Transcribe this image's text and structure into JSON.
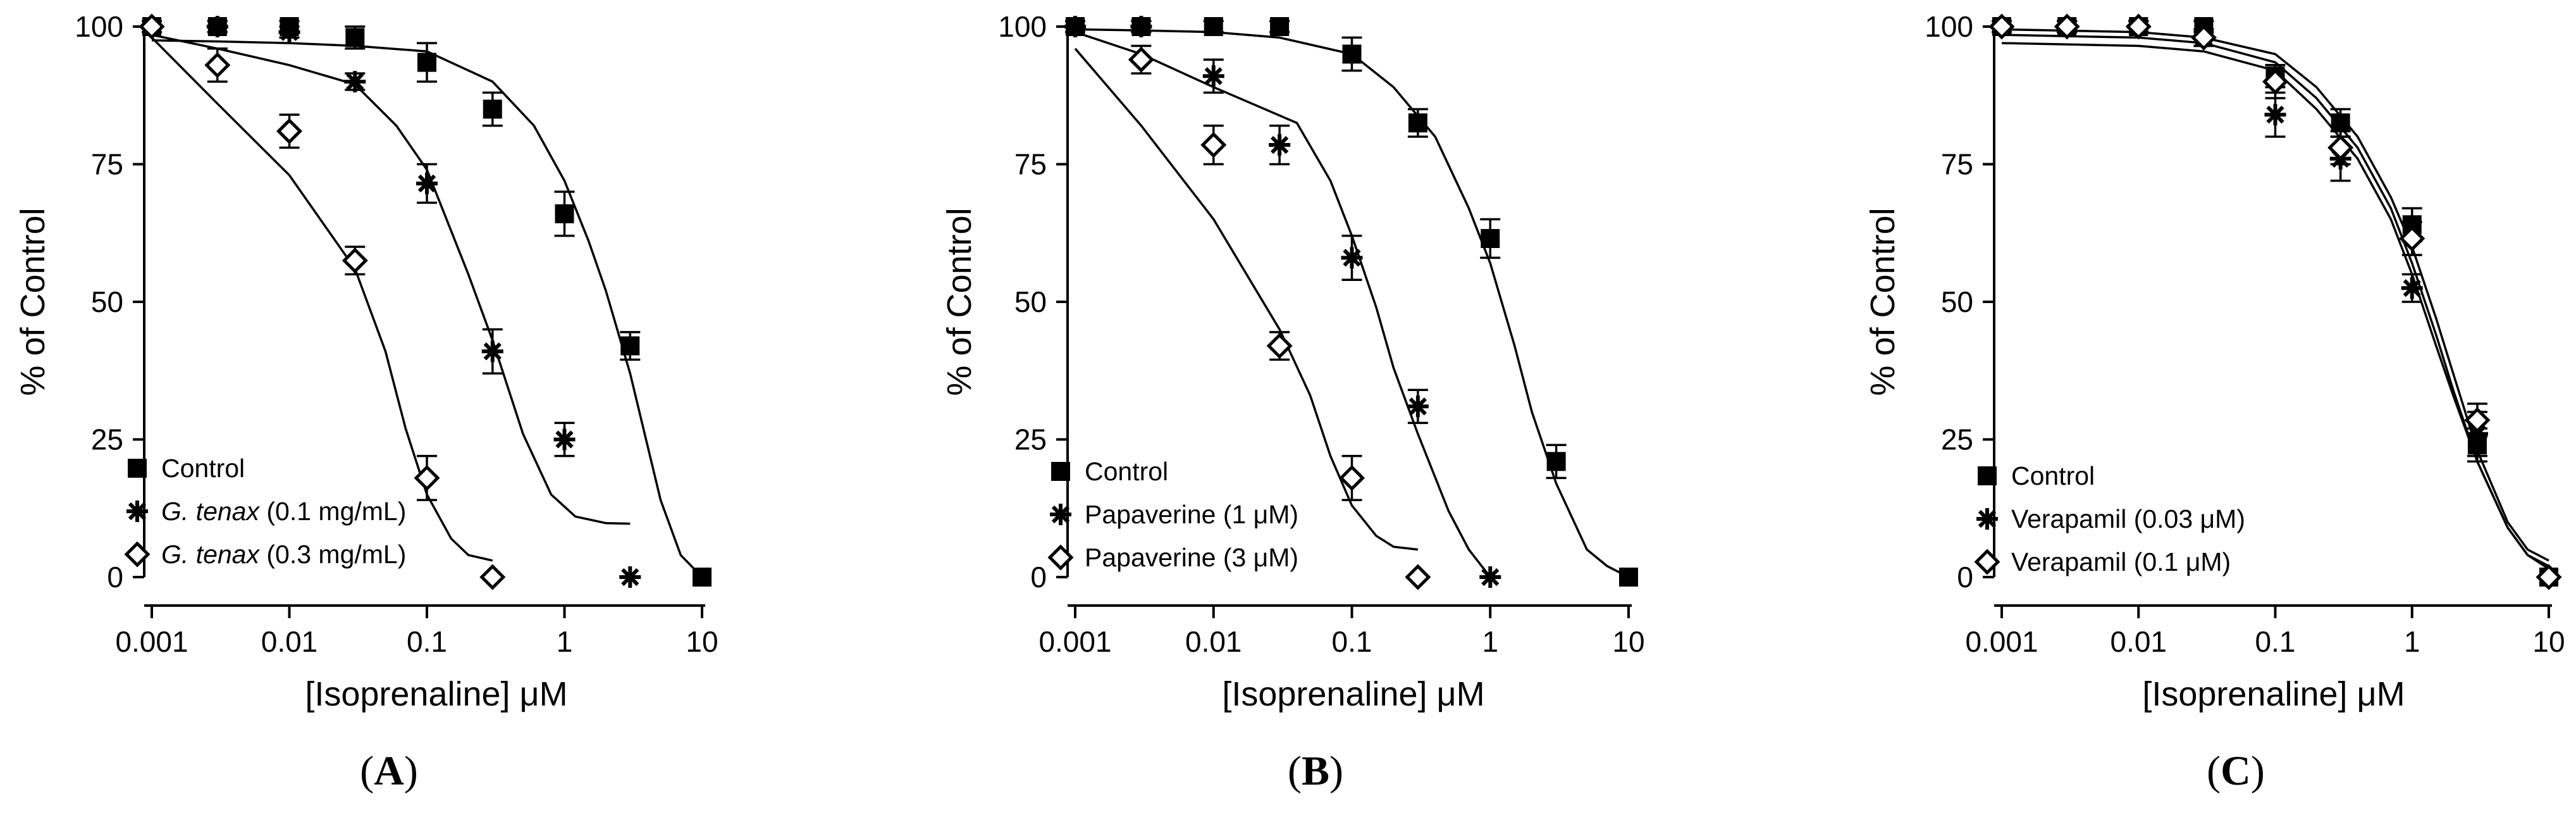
{
  "chart_data": [
    {
      "type": "scatter",
      "panel_label": "(A)",
      "xscale": "log",
      "xlabel": "[Isoprenaline] μM",
      "ylabel": "% of Control",
      "xlim": [
        0.001,
        10
      ],
      "ylim": [
        0,
        100
      ],
      "xticks": [
        "0.001",
        "0.01",
        "0.1",
        "1",
        "10"
      ],
      "yticks": [
        "0",
        "25",
        "50",
        "75",
        "100"
      ],
      "legend_position": "bottom-left",
      "series": [
        {
          "name": "Control",
          "legend_parts": [
            {
              "text": "Control",
              "italic": false
            }
          ],
          "marker": "square",
          "points": [
            {
              "x": 0.001,
              "y": 100,
              "err": 1
            },
            {
              "x": 0.003,
              "y": 100,
              "err": 1
            },
            {
              "x": 0.01,
              "y": 100,
              "err": 1
            },
            {
              "x": 0.03,
              "y": 98,
              "err": 2
            },
            {
              "x": 0.1,
              "y": 93.5,
              "err": 3.5
            },
            {
              "x": 0.3,
              "y": 85,
              "err": 3
            },
            {
              "x": 1,
              "y": 66,
              "err": 4
            },
            {
              "x": 3,
              "y": 42,
              "err": 2.5
            },
            {
              "x": 10,
              "y": 0,
              "err": 0
            }
          ],
          "curve": [
            [
              0.001,
              97.5
            ],
            [
              0.003,
              97.3
            ],
            [
              0.01,
              97.0
            ],
            [
              0.03,
              96.5
            ],
            [
              0.1,
              95.5
            ],
            [
              0.3,
              90
            ],
            [
              0.6,
              82
            ],
            [
              1,
              72
            ],
            [
              1.5,
              61
            ],
            [
              2,
              52
            ],
            [
              3,
              37
            ],
            [
              5,
              14
            ],
            [
              7,
              4
            ],
            [
              10,
              0
            ]
          ]
        },
        {
          "name": "G. tenax (0.1 mg/mL)",
          "legend_parts": [
            {
              "text": "G. tenax",
              "italic": true
            },
            {
              "text": " (0.1 mg/mL)",
              "italic": false
            }
          ],
          "marker": "asterisk",
          "points": [
            {
              "x": 0.001,
              "y": 100,
              "err": 1
            },
            {
              "x": 0.003,
              "y": 100,
              "err": 1
            },
            {
              "x": 0.01,
              "y": 99,
              "err": 1
            },
            {
              "x": 0.03,
              "y": 90,
              "err": 1.5
            },
            {
              "x": 0.1,
              "y": 71.5,
              "err": 3.5
            },
            {
              "x": 0.3,
              "y": 41,
              "err": 4
            },
            {
              "x": 1,
              "y": 25,
              "err": 3
            },
            {
              "x": 3,
              "y": 0,
              "err": 0
            }
          ],
          "curve": [
            [
              0.001,
              98.5
            ],
            [
              0.003,
              96
            ],
            [
              0.01,
              93
            ],
            [
              0.03,
              89.5
            ],
            [
              0.06,
              82
            ],
            [
              0.1,
              74
            ],
            [
              0.2,
              55
            ],
            [
              0.3,
              43
            ],
            [
              0.5,
              26
            ],
            [
              0.8,
              15
            ],
            [
              1.2,
              11
            ],
            [
              2,
              9.8
            ],
            [
              3,
              9.7
            ]
          ]
        },
        {
          "name": "G. tenax (0.3 mg/mL)",
          "legend_parts": [
            {
              "text": "G. tenax",
              "italic": true
            },
            {
              "text": " (0.3 mg/mL)",
              "italic": false
            }
          ],
          "marker": "diamond",
          "points": [
            {
              "x": 0.001,
              "y": 100,
              "err": 1
            },
            {
              "x": 0.003,
              "y": 93,
              "err": 3
            },
            {
              "x": 0.01,
              "y": 81,
              "err": 3
            },
            {
              "x": 0.03,
              "y": 57.5,
              "err": 2.5
            },
            {
              "x": 0.1,
              "y": 18,
              "err": 4
            },
            {
              "x": 0.3,
              "y": 0,
              "err": 0
            }
          ],
          "curve": [
            [
              0.001,
              98
            ],
            [
              0.003,
              86
            ],
            [
              0.01,
              73
            ],
            [
              0.03,
              56
            ],
            [
              0.05,
              41
            ],
            [
              0.07,
              27
            ],
            [
              0.1,
              15
            ],
            [
              0.15,
              7
            ],
            [
              0.2,
              4
            ],
            [
              0.3,
              3
            ]
          ]
        }
      ]
    },
    {
      "type": "scatter",
      "panel_label": "(B)",
      "xscale": "log",
      "xlabel": "[Isoprenaline] μM",
      "ylabel": "% of Control",
      "xlim": [
        0.001,
        10
      ],
      "ylim": [
        0,
        100
      ],
      "xticks": [
        "0.001",
        "0.01",
        "0.1",
        "1",
        "10"
      ],
      "yticks": [
        "0",
        "25",
        "50",
        "75",
        "100"
      ],
      "legend_position": "bottom-left",
      "series": [
        {
          "name": "Control",
          "legend_parts": [
            {
              "text": "Control",
              "italic": false
            }
          ],
          "marker": "square",
          "points": [
            {
              "x": 0.001,
              "y": 100,
              "err": 1
            },
            {
              "x": 0.003,
              "y": 100,
              "err": 1
            },
            {
              "x": 0.01,
              "y": 100,
              "err": 1
            },
            {
              "x": 0.03,
              "y": 100,
              "err": 1
            },
            {
              "x": 0.1,
              "y": 95,
              "err": 3
            },
            {
              "x": 0.3,
              "y": 82.5,
              "err": 2.5
            },
            {
              "x": 1,
              "y": 61.5,
              "err": 3.5
            },
            {
              "x": 3,
              "y": 21,
              "err": 3
            },
            {
              "x": 10,
              "y": 0,
              "err": 0
            }
          ],
          "curve": [
            [
              0.001,
              99.5
            ],
            [
              0.003,
              99.3
            ],
            [
              0.01,
              99
            ],
            [
              0.03,
              98
            ],
            [
              0.1,
              95
            ],
            [
              0.2,
              89
            ],
            [
              0.4,
              80
            ],
            [
              0.7,
              67
            ],
            [
              1,
              57
            ],
            [
              1.5,
              42
            ],
            [
              2,
              30
            ],
            [
              3,
              17
            ],
            [
              5,
              5
            ],
            [
              7,
              2
            ],
            [
              10,
              0
            ]
          ]
        },
        {
          "name": "Papaverine (1 μM)",
          "legend_parts": [
            {
              "text": "Papaverine (1 μM)",
              "italic": false
            }
          ],
          "marker": "asterisk",
          "points": [
            {
              "x": 0.001,
              "y": 100,
              "err": 1
            },
            {
              "x": 0.003,
              "y": 100,
              "err": 1
            },
            {
              "x": 0.01,
              "y": 91,
              "err": 3
            },
            {
              "x": 0.03,
              "y": 78.5,
              "err": 3.5
            },
            {
              "x": 0.1,
              "y": 58,
              "err": 4
            },
            {
              "x": 0.3,
              "y": 31,
              "err": 3
            },
            {
              "x": 1,
              "y": 0,
              "err": 0
            }
          ],
          "curve": [
            [
              0.001,
              99
            ],
            [
              0.003,
              95
            ],
            [
              0.01,
              89
            ],
            [
              0.04,
              82.5
            ],
            [
              0.07,
              72
            ],
            [
              0.1,
              62
            ],
            [
              0.15,
              49
            ],
            [
              0.2,
              38
            ],
            [
              0.3,
              26
            ],
            [
              0.5,
              12
            ],
            [
              0.7,
              5
            ],
            [
              1,
              0
            ]
          ]
        },
        {
          "name": "Papaverine (3 μM)",
          "legend_parts": [
            {
              "text": "Papaverine (3 μM)",
              "italic": false
            }
          ],
          "marker": "diamond",
          "points": [
            {
              "x": 0.003,
              "y": 94,
              "err": 2.5
            },
            {
              "x": 0.01,
              "y": 78.5,
              "err": 3.5
            },
            {
              "x": 0.03,
              "y": 42,
              "err": 2.5
            },
            {
              "x": 0.1,
              "y": 18,
              "err": 4
            },
            {
              "x": 0.3,
              "y": 0,
              "err": 0
            }
          ],
          "curve": [
            [
              0.001,
              96
            ],
            [
              0.003,
              82
            ],
            [
              0.01,
              65
            ],
            [
              0.03,
              45
            ],
            [
              0.05,
              33
            ],
            [
              0.07,
              22
            ],
            [
              0.1,
              13
            ],
            [
              0.15,
              7.5
            ],
            [
              0.2,
              5.5
            ],
            [
              0.3,
              5
            ]
          ]
        }
      ]
    },
    {
      "type": "scatter",
      "panel_label": "(C)",
      "xscale": "log",
      "xlabel": "[Isoprenaline] μM",
      "ylabel": "% of Control",
      "xlim": [
        0.001,
        10
      ],
      "ylim": [
        0,
        100
      ],
      "xticks": [
        "0.001",
        "0.01",
        "0.1",
        "1",
        "10"
      ],
      "yticks": [
        "0",
        "25",
        "50",
        "75",
        "100"
      ],
      "legend_position": "bottom-left",
      "series": [
        {
          "name": "Control",
          "legend_parts": [
            {
              "text": "Control",
              "italic": false
            }
          ],
          "marker": "square",
          "points": [
            {
              "x": 0.001,
              "y": 100,
              "err": 1
            },
            {
              "x": 0.003,
              "y": 100,
              "err": 1
            },
            {
              "x": 0.01,
              "y": 100,
              "err": 1
            },
            {
              "x": 0.03,
              "y": 100,
              "err": 1
            },
            {
              "x": 0.1,
              "y": 91,
              "err": 2
            },
            {
              "x": 0.3,
              "y": 82.5,
              "err": 2.5
            },
            {
              "x": 1,
              "y": 64,
              "err": 3
            },
            {
              "x": 3,
              "y": 24,
              "err": 3
            },
            {
              "x": 10,
              "y": 0,
              "err": 0
            }
          ],
          "curve": [
            [
              0.001,
              98.5
            ],
            [
              0.01,
              98
            ],
            [
              0.03,
              97
            ],
            [
              0.1,
              93.5
            ],
            [
              0.2,
              87
            ],
            [
              0.4,
              78
            ],
            [
              0.7,
              67
            ],
            [
              1,
              57
            ],
            [
              1.5,
              44
            ],
            [
              2,
              34
            ],
            [
              3,
              21
            ],
            [
              5,
              9
            ],
            [
              7,
              4
            ],
            [
              10,
              1.5
            ]
          ]
        },
        {
          "name": "Verapamil (0.03 μM)",
          "legend_parts": [
            {
              "text": "Verapamil (0.03 μM)",
              "italic": false
            }
          ],
          "marker": "asterisk",
          "points": [
            {
              "x": 0.001,
              "y": 100,
              "err": 1
            },
            {
              "x": 0.003,
              "y": 100,
              "err": 1
            },
            {
              "x": 0.01,
              "y": 100,
              "err": 1
            },
            {
              "x": 0.03,
              "y": 98,
              "err": 1.5
            },
            {
              "x": 0.1,
              "y": 84,
              "err": 4
            },
            {
              "x": 0.3,
              "y": 76,
              "err": 4
            },
            {
              "x": 1,
              "y": 52.5,
              "err": 2.5
            },
            {
              "x": 3,
              "y": 26,
              "err": 4
            },
            {
              "x": 10,
              "y": 0,
              "err": 0
            }
          ],
          "curve": [
            [
              0.001,
              97
            ],
            [
              0.01,
              96.5
            ],
            [
              0.03,
              95.5
            ],
            [
              0.1,
              92
            ],
            [
              0.2,
              85
            ],
            [
              0.4,
              76
            ],
            [
              0.7,
              65
            ],
            [
              1,
              55
            ],
            [
              1.5,
              42
            ],
            [
              2,
              33
            ],
            [
              3,
              21
            ],
            [
              5,
              9
            ],
            [
              7,
              4
            ],
            [
              10,
              2
            ]
          ]
        },
        {
          "name": "Verapamil (0.1 μM)",
          "legend_parts": [
            {
              "text": "Verapamil (0.1 μM)",
              "italic": false
            }
          ],
          "marker": "diamond",
          "points": [
            {
              "x": 0.001,
              "y": 100,
              "err": 1
            },
            {
              "x": 0.003,
              "y": 100,
              "err": 1
            },
            {
              "x": 0.01,
              "y": 100,
              "err": 1
            },
            {
              "x": 0.03,
              "y": 98,
              "err": 1.5
            },
            {
              "x": 0.1,
              "y": 90,
              "err": 3
            },
            {
              "x": 0.3,
              "y": 78,
              "err": 3
            },
            {
              "x": 1,
              "y": 61.5,
              "err": 3
            },
            {
              "x": 3,
              "y": 28.5,
              "err": 3
            },
            {
              "x": 10,
              "y": 0,
              "err": 0
            }
          ],
          "curve": [
            [
              0.001,
              99.5
            ],
            [
              0.01,
              99
            ],
            [
              0.03,
              98
            ],
            [
              0.1,
              95
            ],
            [
              0.2,
              89
            ],
            [
              0.4,
              80
            ],
            [
              0.7,
              69
            ],
            [
              1,
              60
            ],
            [
              1.5,
              47
            ],
            [
              2,
              37
            ],
            [
              3,
              23
            ],
            [
              5,
              10
            ],
            [
              7,
              5
            ],
            [
              10,
              3
            ]
          ]
        }
      ]
    }
  ]
}
